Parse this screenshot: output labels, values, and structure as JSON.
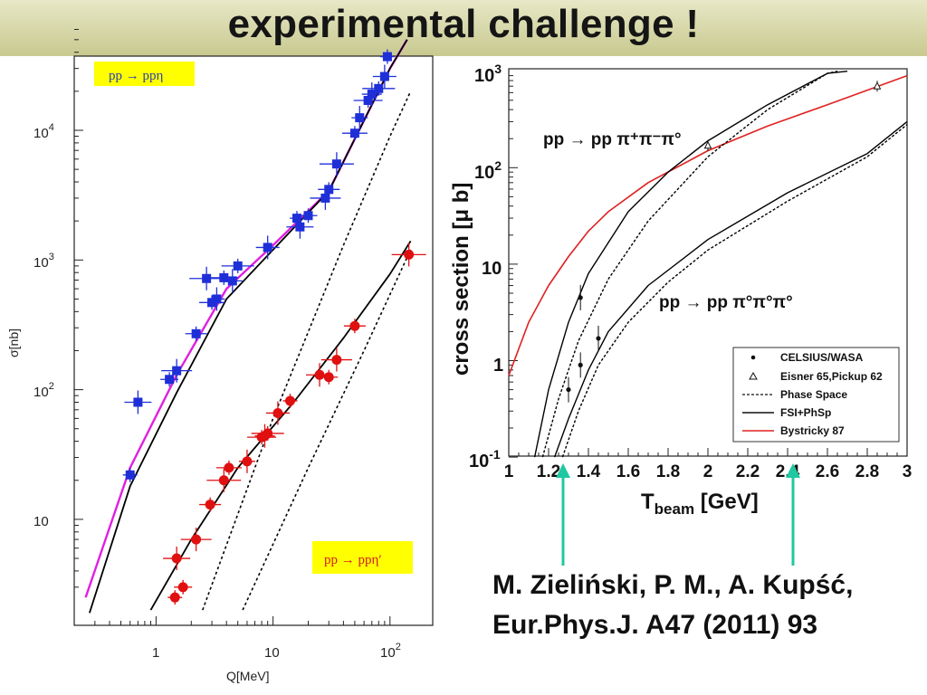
{
  "slide": {
    "title": "experimental challenge !",
    "reference_line1": "M. Zieliński, P. M., A. Kupść,",
    "reference_line2": "Eur.Phys.J. A47 (2011) 93"
  },
  "colors": {
    "header_band": "#d3d4a6",
    "blue_data": "#1f2fd8",
    "red_data": "#e01010",
    "magenta_fit": "#e020e0",
    "bystricky_red": "#e02020",
    "arrow_teal": "#1fc8a0",
    "label_yellow": "#ffff00"
  },
  "chart_data": [
    {
      "type": "scatter",
      "log_x": true,
      "log_y": true,
      "xlabel": "Q[MeV]",
      "ylabel": "σ[nb]",
      "xlim": [
        0.25,
        150
      ],
      "ylim": [
        2.5,
        60000
      ],
      "x_tick_labels": [
        "1",
        "10",
        "10²"
      ],
      "y_tick_labels": [
        "10",
        "10²",
        "10³",
        "10⁴"
      ],
      "label_eta": "pp → ppη",
      "label_etaprime": "pp → ppη′",
      "series": [
        {
          "name": "pp → ppη",
          "marker": "square",
          "points": [
            [
              0.6,
              22
            ],
            [
              0.7,
              80
            ],
            [
              1.3,
              120
            ],
            [
              1.5,
              140
            ],
            [
              2.2,
              270
            ],
            [
              2.7,
              720
            ],
            [
              3.0,
              470
            ],
            [
              3.3,
              500
            ],
            [
              3.8,
              730
            ],
            [
              4.5,
              690
            ],
            [
              5.0,
              900
            ],
            [
              9.0,
              1250
            ],
            [
              16,
              2100
            ],
            [
              17,
              1800
            ],
            [
              20,
              2200
            ],
            [
              28,
              3000
            ],
            [
              30,
              3500
            ],
            [
              35,
              5500
            ],
            [
              50,
              9500
            ],
            [
              55,
              12500
            ],
            [
              65,
              17000
            ],
            [
              70,
              19000
            ],
            [
              80,
              21000
            ],
            [
              90,
              26000
            ],
            [
              95,
              37000
            ]
          ]
        },
        {
          "name": "pp → ppη′",
          "marker": "circle",
          "points": [
            [
              1.45,
              2.5
            ],
            [
              1.5,
              5
            ],
            [
              1.7,
              3
            ],
            [
              2.2,
              7
            ],
            [
              2.9,
              13
            ],
            [
              3.8,
              20
            ],
            [
              4.2,
              25
            ],
            [
              6.0,
              28
            ],
            [
              8.0,
              43
            ],
            [
              8.5,
              44
            ],
            [
              9.0,
              46
            ],
            [
              11.0,
              66
            ],
            [
              14,
              82
            ],
            [
              25,
              130
            ],
            [
              30,
              125
            ],
            [
              35,
              170
            ],
            [
              50,
              310
            ],
            [
              145,
              1100
            ]
          ]
        }
      ],
      "curves": [
        {
          "style": "solid",
          "color": "#e020e0",
          "points": [
            [
              0.25,
              2.5
            ],
            [
              0.6,
              25
            ],
            [
              1.5,
              130
            ],
            [
              4,
              600
            ],
            [
              10,
              1300
            ],
            [
              30,
              3400
            ],
            [
              100,
              30000
            ],
            [
              140,
              50000
            ]
          ]
        },
        {
          "style": "solid",
          "color": "#000000",
          "points": [
            [
              0.27,
              1.9
            ],
            [
              0.6,
              18
            ],
            [
              1.5,
              95
            ],
            [
              4,
              500
            ],
            [
              10,
              1200
            ],
            [
              30,
              3400
            ],
            [
              100,
              30000
            ],
            [
              140,
              50000
            ]
          ]
        },
        {
          "style": "solid",
          "color": "#000000",
          "points": [
            [
              0.9,
              2
            ],
            [
              2,
              7
            ],
            [
              5,
              25
            ],
            [
              15,
              80
            ],
            [
              40,
              250
            ],
            [
              100,
              780
            ],
            [
              150,
              1400
            ]
          ]
        },
        {
          "style": "dotted",
          "color": "#000000",
          "points": [
            [
              2.5,
              2
            ],
            [
              10,
              60
            ],
            [
              40,
              1300
            ],
            [
              100,
              9000
            ],
            [
              150,
              20000
            ]
          ]
        },
        {
          "style": "dotted",
          "color": "#000000",
          "points": [
            [
              5.5,
              2
            ],
            [
              20,
              25
            ],
            [
              60,
              200
            ],
            [
              150,
              1200
            ]
          ]
        }
      ]
    },
    {
      "type": "line",
      "log_y": true,
      "xlabel": "T_beam [GeV]",
      "ylabel": "cross section [μ b]",
      "xlim": [
        1,
        3
      ],
      "ylim": [
        0.1,
        1000
      ],
      "x_ticks": [
        1,
        1.2,
        1.4,
        1.6,
        1.8,
        2,
        2.2,
        2.4,
        2.6,
        2.8,
        3
      ],
      "y_tick_labels": [
        "10⁻¹",
        "1",
        "10",
        "10²",
        "10³"
      ],
      "annotation_upper": "pp → pp π⁺π⁻π°",
      "annotation_lower": "pp → pp π°π°π°",
      "legend": {
        "placement": "bottom-right",
        "entries": [
          "CELSIUS/WASA",
          "Eisner 65,Pickup 62",
          "Phase Space",
          "FSI+PhSp",
          "Bystricky 87"
        ]
      },
      "curves": [
        {
          "name": "Bystricky 87",
          "color": "#e02020",
          "style": "solid",
          "points": [
            [
              1.0,
              0.7
            ],
            [
              1.1,
              2.5
            ],
            [
              1.2,
              6
            ],
            [
              1.3,
              12
            ],
            [
              1.4,
              22
            ],
            [
              1.5,
              35
            ],
            [
              1.7,
              70
            ],
            [
              2.0,
              150
            ],
            [
              2.3,
              270
            ],
            [
              2.6,
              450
            ],
            [
              3.0,
              900
            ]
          ]
        },
        {
          "name": "FSI+PhSp",
          "style": "solid",
          "color": "#000000",
          "points": [
            [
              1.13,
              0.1
            ],
            [
              1.2,
              0.5
            ],
            [
              1.3,
              2.5
            ],
            [
              1.4,
              8
            ],
            [
              1.6,
              35
            ],
            [
              1.8,
              90
            ],
            [
              2.0,
              190
            ],
            [
              2.3,
              450
            ],
            [
              2.6,
              950
            ],
            [
              2.7,
              1000
            ]
          ]
        },
        {
          "name": "Phase Space",
          "style": "dotted",
          "color": "#000000",
          "points": [
            [
              1.17,
              0.1
            ],
            [
              1.25,
              0.4
            ],
            [
              1.35,
              1.6
            ],
            [
              1.5,
              7
            ],
            [
              1.7,
              28
            ],
            [
              2.0,
              130
            ],
            [
              2.3,
              400
            ],
            [
              2.6,
              950
            ],
            [
              2.65,
              1000
            ]
          ]
        },
        {
          "name": "FSI+PhSp",
          "style": "solid",
          "color": "#000000",
          "points": [
            [
              1.23,
              0.1
            ],
            [
              1.3,
              0.25
            ],
            [
              1.4,
              0.8
            ],
            [
              1.5,
              2
            ],
            [
              1.7,
              6
            ],
            [
              2.0,
              18
            ],
            [
              2.4,
              55
            ],
            [
              2.8,
              140
            ],
            [
              3.0,
              300
            ]
          ]
        },
        {
          "name": "Phase Space",
          "style": "dotted",
          "color": "#000000",
          "points": [
            [
              1.27,
              0.1
            ],
            [
              1.35,
              0.3
            ],
            [
              1.45,
              0.9
            ],
            [
              1.6,
              2.5
            ],
            [
              1.8,
              6.5
            ],
            [
              2.0,
              14
            ],
            [
              2.4,
              45
            ],
            [
              2.8,
              130
            ],
            [
              3.0,
              280
            ]
          ]
        }
      ],
      "series": [
        {
          "name": "CELSIUS/WASA",
          "marker": "dot",
          "points": [
            [
              1.3,
              0.5
            ],
            [
              1.36,
              4.5
            ],
            [
              1.36,
              0.9
            ],
            [
              1.45,
              1.7
            ]
          ]
        },
        {
          "name": "Eisner 65,Pickup 62",
          "marker": "triangle",
          "points": [
            [
              2.0,
              170
            ],
            [
              2.85,
              700
            ]
          ]
        }
      ]
    }
  ]
}
